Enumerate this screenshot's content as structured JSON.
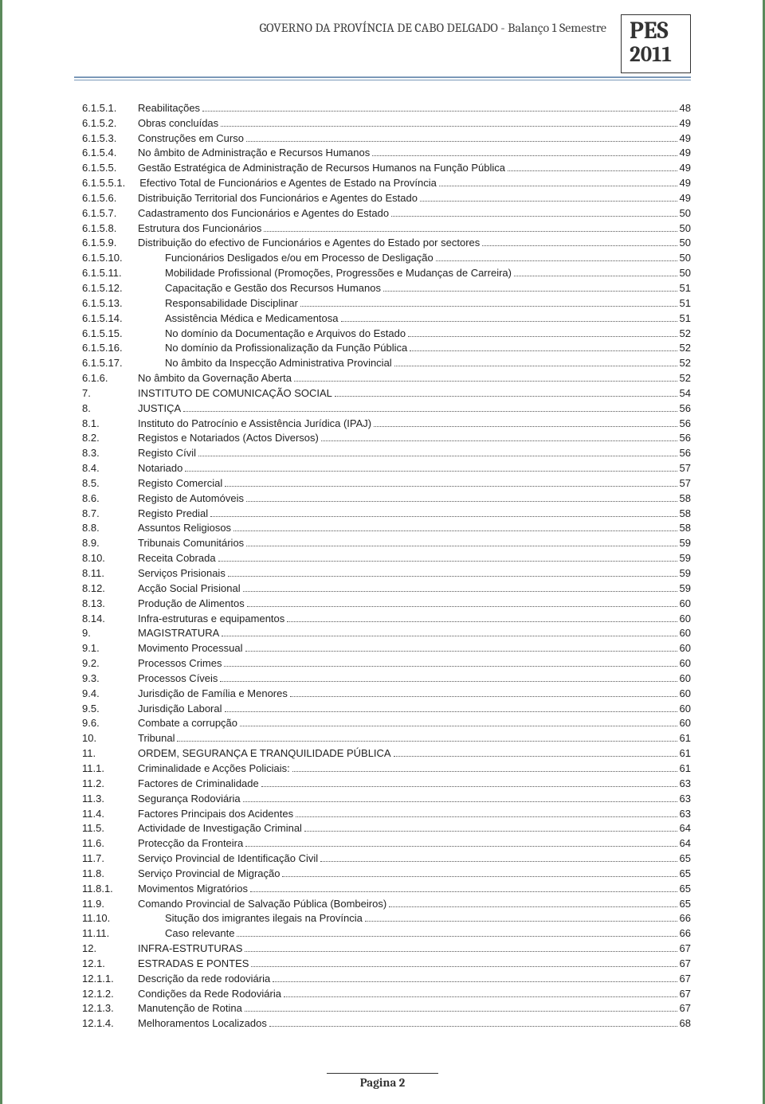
{
  "header": {
    "title": "GOVERNO DA PROVÍNCIA DE CABO DELGADO - Balanço 1 Semestre",
    "pes_line1": "PES",
    "pes_line2": "2011"
  },
  "colors": {
    "page_border": "#5b8a5b",
    "rule": "#7a98b8",
    "text": "#222222",
    "header_text": "#404040"
  },
  "toc": [
    {
      "num": "6.1.5.1.",
      "title": "Reabilitações",
      "page": "48",
      "indent": 1
    },
    {
      "num": "6.1.5.2.",
      "title": "Obras concluídas",
      "page": "49",
      "indent": 1
    },
    {
      "num": "6.1.5.3.",
      "title": "Construções em Curso",
      "page": "49",
      "indent": 1
    },
    {
      "num": "6.1.5.4.",
      "title": "No âmbito de Administração e Recursos Humanos",
      "page": "49",
      "indent": 1
    },
    {
      "num": "6.1.5.5.",
      "title": "Gestão Estratégica de Administração de Recursos Humanos na Função Pública",
      "page": "49",
      "indent": 1
    },
    {
      "num": "6.1.5.5.1.",
      "title": "Efectivo Total de Funcionários e Agentes de Estado na Província",
      "page": "49",
      "indent": 1
    },
    {
      "num": "6.1.5.6.",
      "title": "Distribuição Territorial dos Funcionários e Agentes do Estado",
      "page": "49",
      "indent": 1
    },
    {
      "num": "6.1.5.7.",
      "title": "Cadastramento dos Funcionários e Agentes do Estado",
      "page": "50",
      "indent": 1
    },
    {
      "num": "6.1.5.8.",
      "title": "Estrutura dos Funcionários",
      "page": "50",
      "indent": 1
    },
    {
      "num": "6.1.5.9.",
      "title": "Distribuição do efectivo de Funcionários e Agentes do Estado por sectores",
      "page": "50",
      "indent": 1
    },
    {
      "num": "6.1.5.10.",
      "title": "Funcionários Desligados e/ou em Processo de Desligação",
      "page": "50",
      "indent": 2
    },
    {
      "num": "6.1.5.11.",
      "title": "Mobilidade Profissional (Promoções, Progressões e Mudanças de Carreira)",
      "page": "50",
      "indent": 2
    },
    {
      "num": "6.1.5.12.",
      "title": "Capacitação e Gestão dos Recursos Humanos",
      "page": "51",
      "indent": 2
    },
    {
      "num": "6.1.5.13.",
      "title": "Responsabilidade Disciplinar",
      "page": "51",
      "indent": 2
    },
    {
      "num": "6.1.5.14.",
      "title": "Assistência Médica e Medicamentosa",
      "page": "51",
      "indent": 2
    },
    {
      "num": "6.1.5.15.",
      "title": "No domínio da Documentação e Arquivos do Estado",
      "page": "52",
      "indent": 2
    },
    {
      "num": "6.1.5.16.",
      "title": "No domínio da Profissionalização da Função Pública",
      "page": "52",
      "indent": 2
    },
    {
      "num": "6.1.5.17.",
      "title": "No âmbito da Inspecção Administrativa Provincial",
      "page": "52",
      "indent": 2
    },
    {
      "num": "6.1.6.",
      "title": "No âmbito da Governação Aberta",
      "page": "52",
      "indent": 1
    },
    {
      "num": "7.",
      "title": "INSTITUTO DE COMUNICAÇÃO SOCIAL",
      "page": "54",
      "indent": 1
    },
    {
      "num": "8.",
      "title": "JUSTIÇA",
      "page": "56",
      "indent": 1
    },
    {
      "num": "8.1.",
      "title": "Instituto do Patrocínio e Assistência Jurídica (IPAJ)",
      "page": "56",
      "indent": 1
    },
    {
      "num": "8.2.",
      "title": "Registos e Notariados (Actos Diversos)",
      "page": "56",
      "indent": 1
    },
    {
      "num": "8.3.",
      "title": "Registo Cívil",
      "page": "56",
      "indent": 1
    },
    {
      "num": "8.4.",
      "title": "Notariado",
      "page": "57",
      "indent": 1
    },
    {
      "num": "8.5.",
      "title": "Registo Comercial",
      "page": "57",
      "indent": 1
    },
    {
      "num": "8.6.",
      "title": "Registo de Automóveis",
      "page": "58",
      "indent": 1
    },
    {
      "num": "8.7.",
      "title": "Registo Predial",
      "page": "58",
      "indent": 1
    },
    {
      "num": "8.8.",
      "title": "Assuntos Religiosos",
      "page": "58",
      "indent": 1
    },
    {
      "num": "8.9.",
      "title": "Tribunais Comunitários",
      "page": "59",
      "indent": 1
    },
    {
      "num": "8.10.",
      "title": "Receita Cobrada",
      "page": "59",
      "indent": 1
    },
    {
      "num": "8.11.",
      "title": "Serviços Prisionais",
      "page": "59",
      "indent": 1
    },
    {
      "num": "8.12.",
      "title": "Acção Social Prisional",
      "page": "59",
      "indent": 1
    },
    {
      "num": "8.13.",
      "title": "Produção de Alimentos",
      "page": "60",
      "indent": 1
    },
    {
      "num": "8.14.",
      "title": "Infra-estruturas e equipamentos",
      "page": "60",
      "indent": 1
    },
    {
      "num": "9.",
      "title": "MAGISTRATURA",
      "page": "60",
      "indent": 1
    },
    {
      "num": "9.1.",
      "title": "Movimento Processual",
      "page": "60",
      "indent": 1
    },
    {
      "num": "9.2.",
      "title": "Processos Crimes",
      "page": "60",
      "indent": 1
    },
    {
      "num": "9.3.",
      "title": "Processos Cíveis",
      "page": "60",
      "indent": 1
    },
    {
      "num": "9.4.",
      "title": "Jurisdição de Família e Menores",
      "page": "60",
      "indent": 1
    },
    {
      "num": "9.5.",
      "title": "Jurisdição Laboral",
      "page": "60",
      "indent": 1
    },
    {
      "num": "9.6.",
      "title": "Combate a corrupção",
      "page": "60",
      "indent": 1
    },
    {
      "num": "10.",
      "title": "Tribunal",
      "page": "61",
      "indent": 1
    },
    {
      "num": "11.",
      "title": "ORDEM, SEGURANÇA E TRANQUILIDADE PÚBLICA",
      "page": "61",
      "indent": 1
    },
    {
      "num": "11.1.",
      "title": "Criminalidade e Acções Policiais:",
      "page": "61",
      "indent": 1
    },
    {
      "num": "11.2.",
      "title": "Factores de Criminalidade",
      "page": "63",
      "indent": 1
    },
    {
      "num": "11.3.",
      "title": "Segurança Rodoviária",
      "page": "63",
      "indent": 1
    },
    {
      "num": "11.4.",
      "title": "Factores Principais dos Acidentes",
      "page": "63",
      "indent": 1
    },
    {
      "num": "11.5.",
      "title": "Actividade de Investigação Criminal",
      "page": "64",
      "indent": 1
    },
    {
      "num": "11.6.",
      "title": "Protecção da Fronteira",
      "page": "64",
      "indent": 1
    },
    {
      "num": "11.7.",
      "title": "Serviço Provincial de Identificação Civil",
      "page": "65",
      "indent": 1
    },
    {
      "num": "11.8.",
      "title": "Serviço Provincial de Migração",
      "page": "65",
      "indent": 1
    },
    {
      "num": "11.8.1.",
      "title": "Movimentos Migratórios",
      "page": "65",
      "indent": 1
    },
    {
      "num": "11.9.",
      "title": "Comando Provincial de Salvação Pública (Bombeiros)",
      "page": "65",
      "indent": 1
    },
    {
      "num": "11.10.",
      "title": "Situção dos imigrantes ilegais na Província",
      "page": "66",
      "indent": 2
    },
    {
      "num": "11.11.",
      "title": "Caso relevante",
      "page": "66",
      "indent": 2
    },
    {
      "num": "12.",
      "title": "INFRA-ESTRUTURAS",
      "page": "67",
      "indent": 1
    },
    {
      "num": "12.1.",
      "title": "ESTRADAS E PONTES",
      "page": "67",
      "indent": 1
    },
    {
      "num": "12.1.1.",
      "title": "Descrição da rede rodoviária",
      "page": "67",
      "indent": 1
    },
    {
      "num": "12.1.2.",
      "title": "Condições da Rede Rodoviária",
      "page": "67",
      "indent": 1
    },
    {
      "num": "12.1.3.",
      "title": "Manutenção de Rotina",
      "page": "67",
      "indent": 1
    },
    {
      "num": "12.1.4.",
      "title": "Melhoramentos Localizados",
      "page": "68",
      "indent": 1
    }
  ],
  "footer": {
    "label_prefix": "Pagina ",
    "page_number": "2"
  }
}
